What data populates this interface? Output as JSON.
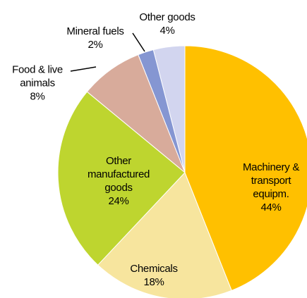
{
  "chart_data": {
    "type": "pie",
    "categories": [
      "Machinery & transport equipm.",
      "Chemicals",
      "Other manufactured goods",
      "Food & live animals",
      "Mineral fuels",
      "Other goods"
    ],
    "values": [
      44,
      18,
      24,
      8,
      2,
      4
    ],
    "value_labels": [
      "44%",
      "18%",
      "24%",
      "8%",
      "2%",
      "4%"
    ],
    "colors": [
      "#FFC000",
      "#F7E59E",
      "#BED52F",
      "#D8AB9B",
      "#8596D2",
      "#D2D5EF"
    ]
  }
}
